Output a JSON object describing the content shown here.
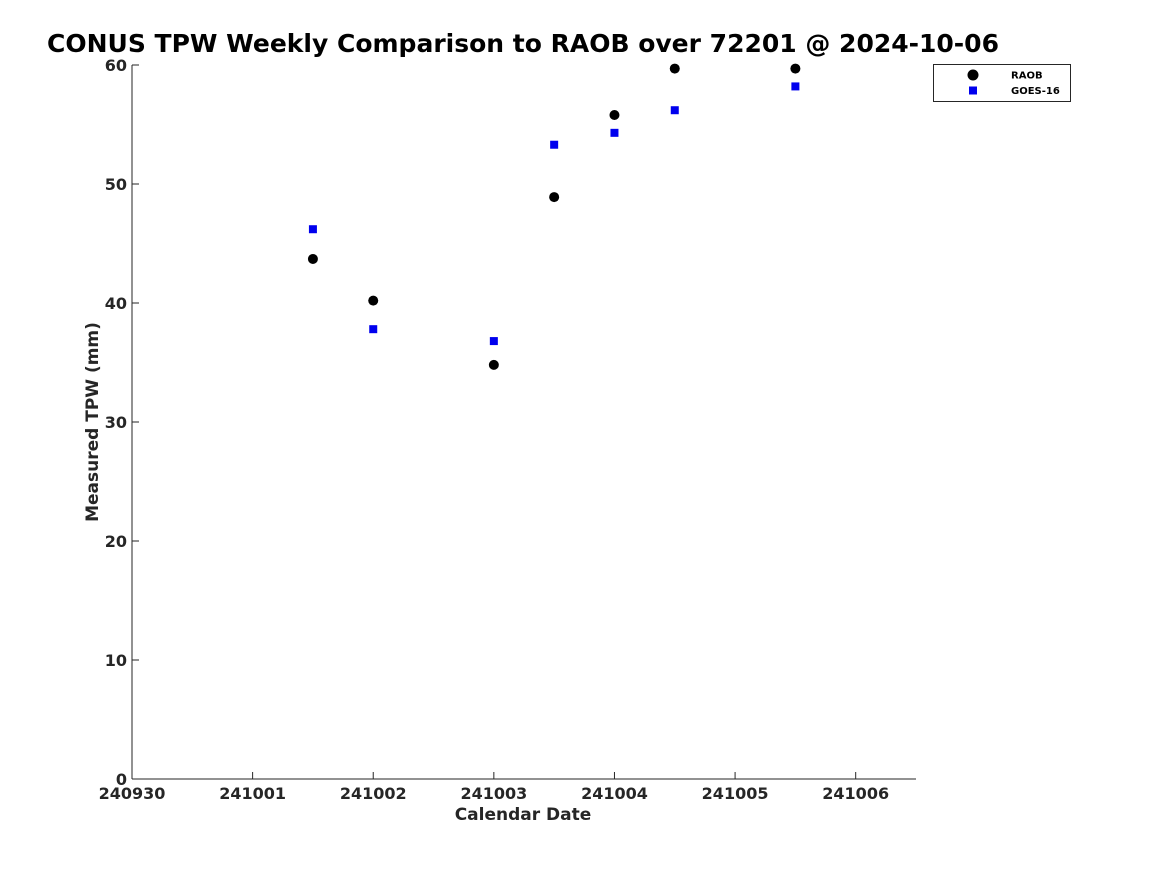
{
  "chart_data": {
    "type": "scatter",
    "title": "CONUS TPW Weekly Comparison to RAOB over 72201 @ 2024-10-06",
    "xlabel": "Calendar Date",
    "ylabel": "Measured TPW (mm)",
    "x_tick_labels": [
      "240930",
      "241001",
      "241002",
      "241003",
      "241004",
      "241005",
      "241006"
    ],
    "y_tick_labels": [
      "0",
      "10",
      "20",
      "30",
      "40",
      "50",
      "60"
    ],
    "xlim": [
      "2024-09-30T00:00",
      "2024-10-06T12:00"
    ],
    "ylim": [
      0,
      60
    ],
    "grid": false,
    "legend_position": "top-right",
    "series": [
      {
        "name": "RAOB",
        "marker": "circle",
        "color": "#000000",
        "points": [
          {
            "x": "2024-10-01T12:00",
            "y": 43.7
          },
          {
            "x": "2024-10-02T00:00",
            "y": 40.2
          },
          {
            "x": "2024-10-03T00:00",
            "y": 34.8
          },
          {
            "x": "2024-10-03T12:00",
            "y": 48.9
          },
          {
            "x": "2024-10-04T00:00",
            "y": 55.8
          },
          {
            "x": "2024-10-04T12:00",
            "y": 59.7
          },
          {
            "x": "2024-10-05T12:00",
            "y": 59.7
          }
        ]
      },
      {
        "name": "GOES-16",
        "marker": "square",
        "color": "#0000ee",
        "points": [
          {
            "x": "2024-10-01T12:00",
            "y": 46.2
          },
          {
            "x": "2024-10-02T00:00",
            "y": 37.8
          },
          {
            "x": "2024-10-03T00:00",
            "y": 36.8
          },
          {
            "x": "2024-10-03T12:00",
            "y": 53.3
          },
          {
            "x": "2024-10-04T00:00",
            "y": 54.3
          },
          {
            "x": "2024-10-04T12:00",
            "y": 56.2
          },
          {
            "x": "2024-10-05T12:00",
            "y": 58.2
          }
        ]
      }
    ]
  }
}
